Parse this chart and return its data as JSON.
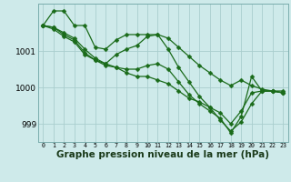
{
  "background_color": "#ceeaea",
  "plot_bg_color": "#ceeaea",
  "grid_color": "#aacece",
  "line_color": "#1a6b1a",
  "marker_color": "#1a6b1a",
  "xlabel": "Graphe pression niveau de la mer (hPa)",
  "xlabel_fontsize": 7.5,
  "x_ticks": [
    0,
    1,
    2,
    3,
    4,
    5,
    6,
    7,
    8,
    9,
    10,
    11,
    12,
    13,
    14,
    15,
    16,
    17,
    18,
    19,
    20,
    21,
    22,
    23
  ],
  "xlim": [
    -0.5,
    23.5
  ],
  "ylim": [
    998.5,
    1002.3
  ],
  "yticks": [
    999,
    1000,
    1001
  ],
  "series": [
    {
      "x": [
        0,
        1,
        2,
        3,
        4,
        5,
        6,
        7,
        8,
        9,
        10,
        11,
        12,
        13,
        14,
        15,
        16,
        17,
        18,
        19,
        20,
        21,
        22,
        23
      ],
      "y": [
        1001.7,
        1002.1,
        1002.1,
        1001.7,
        1001.7,
        1001.1,
        1001.05,
        1001.3,
        1001.45,
        1001.45,
        1001.45,
        1001.45,
        1001.35,
        1001.1,
        1000.85,
        1000.6,
        1000.4,
        1000.2,
        1000.05,
        1000.2,
        1000.05,
        999.95,
        999.9,
        999.9
      ]
    },
    {
      "x": [
        0,
        1,
        2,
        3,
        4,
        5,
        6,
        7,
        8,
        9,
        10,
        11,
        12,
        13,
        14,
        15,
        16,
        17,
        18,
        19,
        20,
        21,
        22,
        23
      ],
      "y": [
        1001.7,
        1001.65,
        1001.5,
        1001.35,
        1001.05,
        1000.8,
        1000.65,
        1000.55,
        1000.4,
        1000.3,
        1000.3,
        1000.2,
        1000.1,
        999.9,
        999.7,
        999.6,
        999.45,
        999.3,
        999.0,
        999.35,
        999.85,
        999.9,
        999.9,
        999.85
      ]
    },
    {
      "x": [
        0,
        1,
        2,
        3,
        4,
        5,
        6,
        7,
        8,
        9,
        10,
        11,
        12,
        13,
        14,
        15,
        16,
        17,
        18,
        19,
        20,
        21,
        22,
        23
      ],
      "y": [
        1001.7,
        1001.65,
        1001.45,
        1001.3,
        1000.95,
        1000.75,
        1000.65,
        1000.9,
        1001.05,
        1001.15,
        1001.4,
        1001.45,
        1001.05,
        1000.55,
        1000.15,
        999.75,
        999.45,
        999.1,
        998.8,
        999.05,
        999.55,
        999.9,
        999.9,
        999.85
      ]
    },
    {
      "x": [
        0,
        1,
        2,
        3,
        4,
        5,
        6,
        7,
        8,
        9,
        10,
        11,
        12,
        13,
        14,
        15,
        16,
        17,
        18,
        19,
        20,
        21,
        22,
        23
      ],
      "y": [
        1001.7,
        1001.6,
        1001.4,
        1001.25,
        1000.9,
        1000.75,
        1000.6,
        1000.55,
        1000.5,
        1000.5,
        1000.6,
        1000.65,
        1000.5,
        1000.15,
        999.8,
        999.55,
        999.35,
        999.15,
        998.75,
        999.2,
        1000.3,
        999.9,
        999.9,
        999.85
      ]
    }
  ],
  "marker_size": 2.5,
  "linewidth": 0.9
}
